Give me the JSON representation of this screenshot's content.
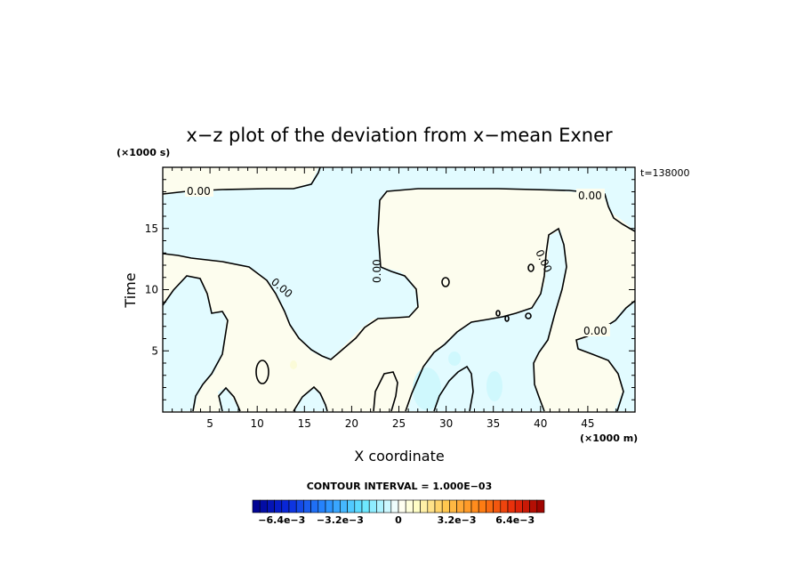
{
  "chart_data": {
    "type": "contour",
    "title": "x−z plot of the deviation from x−mean Exner",
    "xlabel": "X coordinate",
    "ylabel": "Time",
    "x_scale_label": "(×1000 m)",
    "y_scale_label": "(×1000 s)",
    "time_label": "t=138000",
    "xlim": [
      0,
      50
    ],
    "ylim": [
      0,
      20
    ],
    "x_ticks": [
      5,
      10,
      15,
      20,
      25,
      30,
      35,
      40,
      45
    ],
    "y_ticks": [
      5,
      10,
      15
    ],
    "contour_interval_text": "CONTOUR INTERVAL = 1.000E−03",
    "contour_interval": 0.001,
    "contour_labels": [
      "0.00",
      "0.00",
      "0.00",
      "0.00",
      "0.00",
      "0.00"
    ],
    "colorbar": {
      "min": -0.008,
      "max": 0.008,
      "n_bins": 40,
      "tick_labels": [
        "−6.4e−3",
        "−3.2e−3",
        "0",
        "3.2e−3",
        "6.4e−3"
      ],
      "tick_values": [
        -0.0064,
        -0.0032,
        0,
        0.0032,
        0.0064
      ]
    },
    "colors": {
      "negative_region": "#e2fbff",
      "positive_region": "#fdfdee",
      "contour_line": "#000000"
    }
  }
}
